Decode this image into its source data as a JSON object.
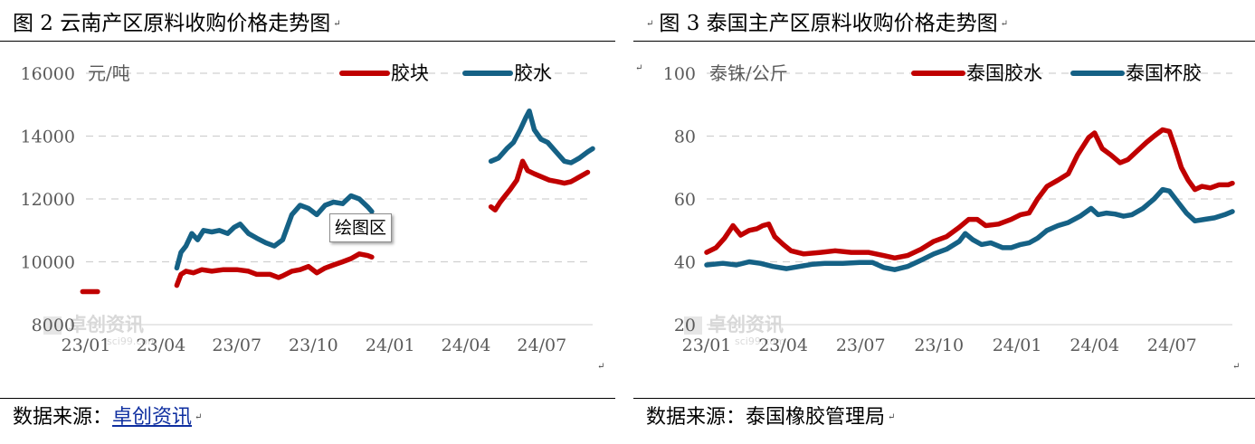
{
  "left": {
    "title": "图 2  云南产区原料收购价格走势图",
    "source_label": "数据来源：",
    "source_name": "卓创资讯",
    "tooltip": "绘图区",
    "watermark": "卓创资讯",
    "watermark_sub": "sci99.com"
  },
  "right": {
    "title": "图 3  泰国主产区原料收购价格走势图",
    "source_label": "数据来源：泰国橡胶管理局",
    "watermark": "卓创资讯",
    "watermark_sub": "sci99.com"
  },
  "mark_glyph": "↵",
  "chart_data": [
    {
      "type": "line",
      "unit_label": "元/吨",
      "ylim": [
        8000,
        16000
      ],
      "yticks": [
        8000,
        10000,
        12000,
        14000,
        16000
      ],
      "ytick_labels": [
        "8000",
        "10000",
        "12000",
        "14000",
        "16000"
      ],
      "xlim": [
        "2023-01-01",
        "2024-08-31"
      ],
      "xticks": [
        "2023-01-01",
        "2023-04-01",
        "2023-07-01",
        "2023-10-01",
        "2024-01-01",
        "2024-04-01",
        "2024-07-01"
      ],
      "xtick_labels": [
        "23/01",
        "23/04",
        "23/07",
        "23/10",
        "24/01",
        "24/04",
        "24/07"
      ],
      "grid": true,
      "legend_position": "top-right",
      "series": [
        {
          "name": "胶块",
          "color": "#c00000",
          "segments": [
            [
              [
                "2022-12-28",
                9050
              ],
              [
                "2023-01-15",
                9050
              ]
            ],
            [
              [
                "2023-04-20",
                9250
              ],
              [
                "2023-04-25",
                9600
              ],
              [
                "2023-05-01",
                9700
              ],
              [
                "2023-05-10",
                9650
              ],
              [
                "2023-05-20",
                9750
              ],
              [
                "2023-06-01",
                9700
              ],
              [
                "2023-06-15",
                9750
              ],
              [
                "2023-07-01",
                9750
              ],
              [
                "2023-07-15",
                9700
              ],
              [
                "2023-07-25",
                9600
              ],
              [
                "2023-08-10",
                9600
              ],
              [
                "2023-08-20",
                9500
              ],
              [
                "2023-08-25",
                9550
              ],
              [
                "2023-09-05",
                9700
              ],
              [
                "2023-09-15",
                9750
              ],
              [
                "2023-09-25",
                9850
              ],
              [
                "2023-10-05",
                9650
              ],
              [
                "2023-10-15",
                9800
              ],
              [
                "2023-10-25",
                9900
              ],
              [
                "2023-11-05",
                10000
              ],
              [
                "2023-11-15",
                10100
              ],
              [
                "2023-11-25",
                10250
              ],
              [
                "2023-12-05",
                10200
              ],
              [
                "2023-12-10",
                10150
              ]
            ],
            [
              [
                "2024-05-01",
                11750
              ],
              [
                "2024-05-06",
                11650
              ],
              [
                "2024-05-12",
                11900
              ],
              [
                "2024-05-18",
                12100
              ],
              [
                "2024-05-24",
                12300
              ],
              [
                "2024-06-01",
                12600
              ],
              [
                "2024-06-08",
                13200
              ],
              [
                "2024-06-14",
                12900
              ],
              [
                "2024-06-22",
                12800
              ],
              [
                "2024-07-01",
                12700
              ],
              [
                "2024-07-10",
                12600
              ],
              [
                "2024-07-20",
                12550
              ],
              [
                "2024-07-28",
                12500
              ],
              [
                "2024-08-05",
                12550
              ],
              [
                "2024-08-15",
                12700
              ],
              [
                "2024-08-25",
                12850
              ]
            ]
          ]
        },
        {
          "name": "胶水",
          "color": "#156185",
          "segments": [
            [
              [
                "2023-04-20",
                9800
              ],
              [
                "2023-04-25",
                10300
              ],
              [
                "2023-05-01",
                10500
              ],
              [
                "2023-05-08",
                10900
              ],
              [
                "2023-05-15",
                10700
              ],
              [
                "2023-05-22",
                11000
              ],
              [
                "2023-06-01",
                10950
              ],
              [
                "2023-06-10",
                11000
              ],
              [
                "2023-06-20",
                10900
              ],
              [
                "2023-06-28",
                11100
              ],
              [
                "2023-07-05",
                11200
              ],
              [
                "2023-07-15",
                10900
              ],
              [
                "2023-07-25",
                10750
              ],
              [
                "2023-08-05",
                10600
              ],
              [
                "2023-08-15",
                10500
              ],
              [
                "2023-08-25",
                10700
              ],
              [
                "2023-09-05",
                11500
              ],
              [
                "2023-09-15",
                11800
              ],
              [
                "2023-09-25",
                11700
              ],
              [
                "2023-10-05",
                11500
              ],
              [
                "2023-10-15",
                11800
              ],
              [
                "2023-10-25",
                11900
              ],
              [
                "2023-11-05",
                11850
              ],
              [
                "2023-11-15",
                12100
              ],
              [
                "2023-11-25",
                12000
              ],
              [
                "2023-12-05",
                11750
              ],
              [
                "2023-12-10",
                11600
              ]
            ],
            [
              [
                "2024-05-01",
                13200
              ],
              [
                "2024-05-10",
                13300
              ],
              [
                "2024-05-20",
                13600
              ],
              [
                "2024-05-28",
                13800
              ],
              [
                "2024-06-05",
                14200
              ],
              [
                "2024-06-12",
                14600
              ],
              [
                "2024-06-16",
                14800
              ],
              [
                "2024-06-22",
                14200
              ],
              [
                "2024-06-30",
                13900
              ],
              [
                "2024-07-08",
                13800
              ],
              [
                "2024-07-18",
                13500
              ],
              [
                "2024-07-28",
                13200
              ],
              [
                "2024-08-05",
                13150
              ],
              [
                "2024-08-15",
                13300
              ],
              [
                "2024-08-25",
                13500
              ],
              [
                "2024-08-31",
                13600
              ]
            ]
          ]
        }
      ]
    },
    {
      "type": "line",
      "unit_label": "泰铢/公斤",
      "ylim": [
        20,
        100
      ],
      "yticks": [
        20,
        40,
        60,
        80,
        100
      ],
      "ytick_labels": [
        "20",
        "40",
        "60",
        "80",
        "100"
      ],
      "xlim": [
        "2023-01-01",
        "2024-09-10"
      ],
      "xticks": [
        "2023-01-01",
        "2023-04-01",
        "2023-07-01",
        "2023-10-01",
        "2024-01-01",
        "2024-04-01",
        "2024-07-01"
      ],
      "xtick_labels": [
        "23/01",
        "23/04",
        "23/07",
        "23/10",
        "24/01",
        "24/04",
        "24/07"
      ],
      "grid": true,
      "legend_position": "top-right",
      "series": [
        {
          "name": "泰国胶水",
          "color": "#c00000",
          "segments": [
            [
              [
                "2023-01-01",
                43
              ],
              [
                "2023-01-12",
                44.5
              ],
              [
                "2023-01-22",
                47.5
              ],
              [
                "2023-02-01",
                51.5
              ],
              [
                "2023-02-10",
                48.5
              ],
              [
                "2023-02-20",
                50
              ],
              [
                "2023-03-01",
                50.5
              ],
              [
                "2023-03-08",
                51.5
              ],
              [
                "2023-03-15",
                52
              ],
              [
                "2023-03-22",
                48
              ],
              [
                "2023-04-01",
                45.5
              ],
              [
                "2023-04-10",
                43.5
              ],
              [
                "2023-04-25",
                42.5
              ],
              [
                "2023-05-15",
                43
              ],
              [
                "2023-06-01",
                43.5
              ],
              [
                "2023-06-20",
                43
              ],
              [
                "2023-07-10",
                43
              ],
              [
                "2023-07-28",
                42
              ],
              [
                "2023-08-10",
                41.2
              ],
              [
                "2023-08-25",
                42
              ],
              [
                "2023-09-10",
                44
              ],
              [
                "2023-09-25",
                46.5
              ],
              [
                "2023-10-10",
                48
              ],
              [
                "2023-10-25",
                51
              ],
              [
                "2023-11-05",
                53.5
              ],
              [
                "2023-11-15",
                53.5
              ],
              [
                "2023-11-25",
                51.5
              ],
              [
                "2023-12-10",
                52
              ],
              [
                "2023-12-25",
                53.5
              ],
              [
                "2024-01-05",
                55
              ],
              [
                "2024-01-15",
                55.5
              ],
              [
                "2024-01-25",
                60
              ],
              [
                "2024-02-05",
                64
              ],
              [
                "2024-02-18",
                66
              ],
              [
                "2024-03-01",
                68
              ],
              [
                "2024-03-12",
                74
              ],
              [
                "2024-03-25",
                79.5
              ],
              [
                "2024-04-01",
                81
              ],
              [
                "2024-04-10",
                76
              ],
              [
                "2024-04-20",
                74
              ],
              [
                "2024-05-01",
                71.5
              ],
              [
                "2024-05-10",
                72.5
              ],
              [
                "2024-05-20",
                75
              ],
              [
                "2024-06-01",
                78
              ],
              [
                "2024-06-10",
                80
              ],
              [
                "2024-06-20",
                82
              ],
              [
                "2024-06-28",
                81.5
              ],
              [
                "2024-07-05",
                76
              ],
              [
                "2024-07-12",
                70
              ],
              [
                "2024-07-20",
                66
              ],
              [
                "2024-07-28",
                63
              ],
              [
                "2024-08-05",
                64
              ],
              [
                "2024-08-15",
                63.5
              ],
              [
                "2024-08-25",
                64.5
              ],
              [
                "2024-09-05",
                64.5
              ],
              [
                "2024-09-10",
                65
              ]
            ]
          ]
        },
        {
          "name": "泰国杯胶",
          "color": "#156185",
          "segments": [
            [
              [
                "2023-01-01",
                39
              ],
              [
                "2023-01-20",
                39.5
              ],
              [
                "2023-02-05",
                39
              ],
              [
                "2023-02-20",
                40
              ],
              [
                "2023-03-05",
                39.5
              ],
              [
                "2023-03-20",
                38.5
              ],
              [
                "2023-04-05",
                37.8
              ],
              [
                "2023-04-20",
                38.5
              ],
              [
                "2023-05-05",
                39.2
              ],
              [
                "2023-05-20",
                39.5
              ],
              [
                "2023-06-10",
                39.5
              ],
              [
                "2023-06-30",
                39.8
              ],
              [
                "2023-07-15",
                39.8
              ],
              [
                "2023-07-28",
                38.2
              ],
              [
                "2023-08-10",
                37.5
              ],
              [
                "2023-08-25",
                38.5
              ],
              [
                "2023-09-10",
                40.5
              ],
              [
                "2023-09-25",
                42.5
              ],
              [
                "2023-10-10",
                44
              ],
              [
                "2023-10-25",
                46.5
              ],
              [
                "2023-11-01",
                49
              ],
              [
                "2023-11-10",
                47
              ],
              [
                "2023-11-20",
                45.5
              ],
              [
                "2023-12-01",
                46
              ],
              [
                "2023-12-15",
                44.5
              ],
              [
                "2023-12-25",
                44.5
              ],
              [
                "2024-01-05",
                45.5
              ],
              [
                "2024-01-15",
                46
              ],
              [
                "2024-01-25",
                47.5
              ],
              [
                "2024-02-05",
                50
              ],
              [
                "2024-02-18",
                51.5
              ],
              [
                "2024-03-01",
                52.5
              ],
              [
                "2024-03-15",
                54.5
              ],
              [
                "2024-03-28",
                57
              ],
              [
                "2024-04-05",
                55
              ],
              [
                "2024-04-15",
                55.5
              ],
              [
                "2024-04-25",
                55.2
              ],
              [
                "2024-05-05",
                54.5
              ],
              [
                "2024-05-15",
                55
              ],
              [
                "2024-05-28",
                57
              ],
              [
                "2024-06-10",
                60
              ],
              [
                "2024-06-20",
                63
              ],
              [
                "2024-06-28",
                62.5
              ],
              [
                "2024-07-08",
                59
              ],
              [
                "2024-07-18",
                55.5
              ],
              [
                "2024-07-28",
                53
              ],
              [
                "2024-08-08",
                53.5
              ],
              [
                "2024-08-20",
                54
              ],
              [
                "2024-09-01",
                55
              ],
              [
                "2024-09-10",
                56
              ]
            ]
          ]
        }
      ]
    }
  ]
}
